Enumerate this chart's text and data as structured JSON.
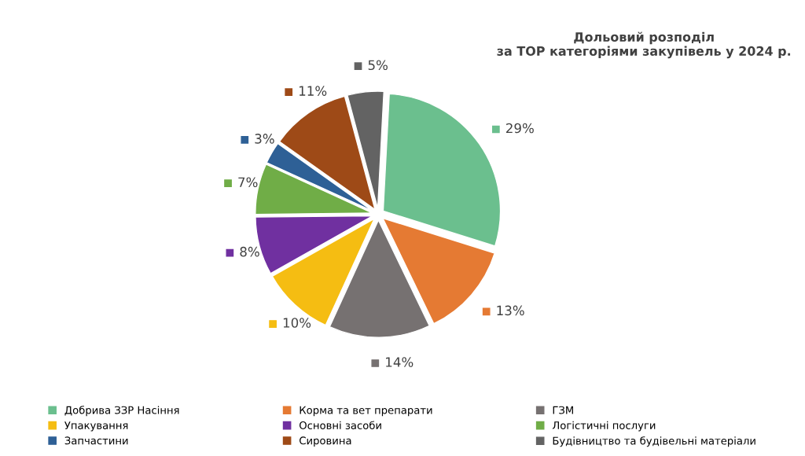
{
  "chart_data": {
    "type": "pie",
    "title": "Дольовий розподіл\nза TOP категоріями закупівель у 2024 р.",
    "categories": [
      "Добрива ЗЗР Насіння",
      "Корма та вет препарати",
      "ГЗМ",
      "Упакування",
      "Основні засоби",
      "Логістичні послуги",
      "Запчастини",
      "Сировина",
      "Будівництво та будівельні матеріали"
    ],
    "values": [
      29,
      13,
      14,
      10,
      8,
      7,
      3,
      11,
      5
    ],
    "colors": [
      "#6bbf8e",
      "#e57a33",
      "#767171",
      "#f5bd12",
      "#7030a0",
      "#70ad47",
      "#2e6096",
      "#9e4a17",
      "#636363"
    ],
    "value_labels": [
      "29%",
      "13%",
      "14%",
      "10%",
      "8%",
      "7%",
      "3%",
      "11%",
      "5%"
    ],
    "legend": "bottom"
  }
}
